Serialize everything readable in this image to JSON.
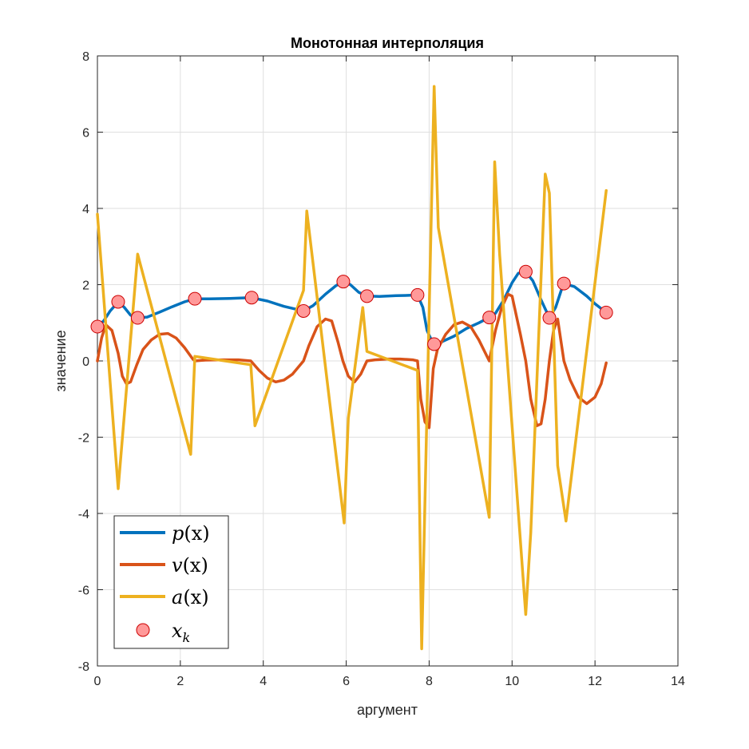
{
  "chart_data": {
    "type": "line",
    "title": "Монотонная интерполяция",
    "xlabel": "аргумент",
    "ylabel": "значение",
    "xlim": [
      0,
      14
    ],
    "ylim": [
      -8,
      8
    ],
    "xticks": [
      0,
      2,
      4,
      6,
      8,
      10,
      12,
      14
    ],
    "yticks": [
      -8,
      -6,
      -4,
      -2,
      0,
      2,
      4,
      6,
      8
    ],
    "grid": true,
    "legend_position": "bottom-left",
    "series": [
      {
        "name": "p(x)",
        "color": "#0072BD",
        "x": [
          0,
          0.15,
          0.3,
          0.5,
          0.65,
          0.8,
          0.95,
          1.2,
          1.5,
          1.8,
          2.1,
          2.35,
          2.7,
          3.2,
          3.7,
          4.1,
          4.5,
          4.97,
          5.2,
          5.5,
          5.75,
          5.92,
          6.1,
          6.3,
          6.5,
          6.8,
          7.2,
          7.5,
          7.72,
          7.85,
          7.95,
          8.1,
          8.3,
          8.6,
          8.9,
          9.2,
          9.45,
          9.6,
          9.8,
          10.0,
          10.15,
          10.33,
          10.5,
          10.7,
          10.9,
          11.05,
          11.2,
          11.25,
          11.5,
          11.8,
          12.0,
          12.27
        ],
        "y": [
          0.9,
          1.05,
          1.3,
          1.55,
          1.4,
          1.2,
          1.13,
          1.15,
          1.28,
          1.42,
          1.55,
          1.63,
          1.63,
          1.64,
          1.66,
          1.57,
          1.43,
          1.31,
          1.45,
          1.75,
          1.97,
          2.08,
          2.0,
          1.8,
          1.7,
          1.69,
          1.71,
          1.72,
          1.73,
          1.4,
          0.8,
          0.44,
          0.5,
          0.65,
          0.85,
          1.0,
          1.14,
          1.25,
          1.6,
          2.05,
          2.3,
          2.34,
          2.1,
          1.6,
          1.13,
          1.4,
          1.9,
          2.03,
          1.95,
          1.7,
          1.5,
          1.27
        ]
      },
      {
        "name": "v(x)",
        "color": "#D95319",
        "x": [
          0,
          0.1,
          0.2,
          0.35,
          0.5,
          0.6,
          0.7,
          0.8,
          0.95,
          1.1,
          1.3,
          1.5,
          1.7,
          1.9,
          2.1,
          2.3,
          2.35,
          2.6,
          3.0,
          3.4,
          3.7,
          3.9,
          4.1,
          4.3,
          4.5,
          4.7,
          4.97,
          5.1,
          5.3,
          5.5,
          5.65,
          5.8,
          5.92,
          6.05,
          6.2,
          6.35,
          6.5,
          6.7,
          7.0,
          7.3,
          7.6,
          7.72,
          7.8,
          7.9,
          8.0,
          8.1,
          8.2,
          8.4,
          8.6,
          8.8,
          9.0,
          9.2,
          9.45,
          9.6,
          9.75,
          9.9,
          10.0,
          10.1,
          10.2,
          10.33,
          10.45,
          10.6,
          10.7,
          10.8,
          10.9,
          11.0,
          11.1,
          11.25,
          11.4,
          11.6,
          11.8,
          12.0,
          12.15,
          12.27
        ],
        "y": [
          0,
          0.6,
          0.95,
          0.8,
          0.2,
          -0.4,
          -0.6,
          -0.55,
          -0.1,
          0.3,
          0.55,
          0.7,
          0.72,
          0.6,
          0.35,
          0.05,
          0,
          0.02,
          0.03,
          0.03,
          0,
          -0.25,
          -0.45,
          -0.55,
          -0.5,
          -0.35,
          0,
          0.4,
          0.9,
          1.1,
          1.05,
          0.5,
          0,
          -0.4,
          -0.55,
          -0.35,
          0,
          0.03,
          0.05,
          0.05,
          0.03,
          0,
          -1.0,
          -1.6,
          -1.75,
          -0.2,
          0.3,
          0.7,
          0.95,
          1.02,
          0.9,
          0.55,
          0,
          0.8,
          1.4,
          1.75,
          1.7,
          1.2,
          0.7,
          0,
          -1.0,
          -1.7,
          -1.65,
          -1.0,
          0,
          0.8,
          1.1,
          0,
          -0.5,
          -0.95,
          -1.12,
          -0.95,
          -0.6,
          -0.05
        ]
      },
      {
        "name": "a(x)",
        "color": "#EDB120",
        "x": [
          0,
          0.5,
          0.97,
          2.25,
          2.35,
          3.7,
          3.8,
          4.97,
          5.05,
          5.95,
          6.05,
          6.4,
          6.5,
          7.72,
          7.82,
          8.12,
          8.22,
          9.45,
          9.58,
          9.7,
          10.33,
          10.45,
          10.8,
          10.9,
          11.1,
          11.3,
          12.27
        ],
        "y": [
          3.85,
          -3.35,
          2.8,
          -2.45,
          0.12,
          -0.1,
          -1.7,
          1.85,
          3.93,
          -4.25,
          -1.5,
          1.4,
          0.25,
          -0.25,
          -7.55,
          7.2,
          3.5,
          -4.1,
          5.22,
          2.8,
          -6.65,
          -4.5,
          4.9,
          4.4,
          -2.75,
          -4.2,
          4.47
        ]
      }
    ],
    "markers": {
      "name": "x_k",
      "face_color": "#FF9999",
      "edge_color": "#CC0000",
      "x": [
        0,
        0.5,
        0.97,
        2.35,
        3.72,
        4.97,
        5.93,
        6.5,
        7.72,
        8.12,
        9.45,
        10.33,
        10.9,
        11.25,
        12.27
      ],
      "y": [
        0.9,
        1.55,
        1.13,
        1.63,
        1.66,
        1.31,
        2.08,
        1.7,
        1.73,
        0.44,
        1.14,
        2.34,
        1.13,
        2.03,
        1.27
      ]
    },
    "legend": {
      "p_base": "p",
      "p_arg": "(x)",
      "v_base": "v",
      "v_arg": "(x)",
      "a_base": "a",
      "a_arg": "(x)",
      "k_base": "x",
      "k_sub": "k"
    }
  }
}
